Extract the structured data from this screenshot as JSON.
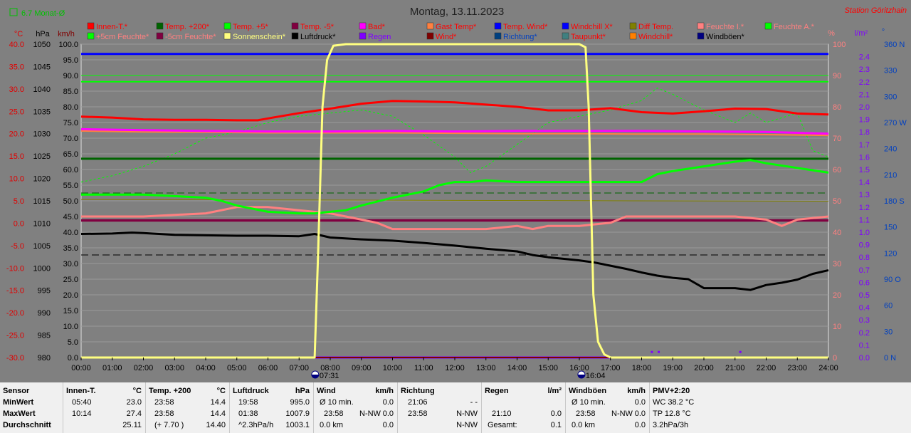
{
  "header": {
    "title": "Montag, 13.11.2023",
    "station": "Station Göritzhain",
    "checkbox_label": "6.7 Monat-Ø"
  },
  "axis_units": {
    "temp": "°C",
    "press": "hPa",
    "speed": "km/h",
    "hum": "%",
    "rain": "l/m²",
    "dir": "°"
  },
  "legend": [
    {
      "label": "Innen-T.*",
      "color": "#ff0000",
      "text": "#ff0000"
    },
    {
      "label": "Temp. +200*",
      "color": "#006400",
      "text": "#ff0000"
    },
    {
      "label": "Temp. +5*",
      "color": "#00ff00",
      "text": "#ff0000"
    },
    {
      "label": "Temp. -5*",
      "color": "#800040",
      "text": "#ff0000"
    },
    {
      "label": "Bad*",
      "color": "#ff00ff",
      "text": "#ff0000"
    },
    {
      "label": "Gast Temp*",
      "color": "#ff8040",
      "text": "#ff0000"
    },
    {
      "label": "Temp. Wind*",
      "color": "#0000ff",
      "text": "#ff0000"
    },
    {
      "label": "Windchill X*",
      "color": "#0000ff",
      "text": "#ff0000"
    },
    {
      "label": "Diff Temp.",
      "color": "#808000",
      "text": "#ff0000"
    },
    {
      "label": "Feuchte I.*",
      "color": "#ff8080",
      "text": "#ff8080"
    },
    {
      "label": "Feuchte A.*",
      "color": "#00ff00",
      "text": "#ff8080"
    },
    {
      "label": "+5cm Feuchte*",
      "color": "#00ff00",
      "text": "#ff8080"
    },
    {
      "label": "-5cm Feuchte*",
      "color": "#800040",
      "text": "#ff8080"
    },
    {
      "label": "Sonnenschein*",
      "color": "#ffff80",
      "text": "#ffff80"
    },
    {
      "label": "Luftdruck*",
      "color": "#000000",
      "text": "#000000"
    },
    {
      "label": "Regen",
      "color": "#8000ff",
      "text": "#8000ff"
    },
    {
      "label": "Wind*",
      "color": "#800000",
      "text": "#ff0000"
    },
    {
      "label": "Richtung*",
      "color": "#004080",
      "text": "#0040c0"
    },
    {
      "label": "Taupunkt*",
      "color": "#408080",
      "text": "#ff0000"
    },
    {
      "label": "Windchill*",
      "color": "#ff8000",
      "text": "#ff0000"
    },
    {
      "label": "Windböen*",
      "color": "#000080",
      "text": "#000000"
    }
  ],
  "stats": {
    "row_labels": [
      "Sensor",
      "MinWert",
      "MaxWert",
      "Durchschnitt"
    ],
    "innen": {
      "title": "Innen-T.",
      "unit": "°C",
      "min_time": "05:40",
      "min": "23.0",
      "max_time": "10:14",
      "max": "27.4",
      "avg": "25.11"
    },
    "temp200": {
      "title": "Temp. +200",
      "unit": "°C",
      "min_time": "23:58",
      "min": "14.4",
      "max_time": "23:58",
      "max": "14.4",
      "avg_note": "(+ 7.70 )",
      "avg": "14.40"
    },
    "druck": {
      "title": "Luftdruck",
      "unit": "hPa",
      "min_time": "19:58",
      "min": "995.0",
      "max_time": "01:38",
      "max": "1007.9",
      "avg_note": "^2.3hPa/h",
      "avg": "1003.1"
    },
    "wind": {
      "title": "Wind",
      "unit": "km/h",
      "min_note": "Ø 10 min.",
      "min": "0.0",
      "max_time": "23:58",
      "max_dir": "N-NW",
      "max": "0.0",
      "avg_note": "0.0 km",
      "avg": "0.0"
    },
    "richtung": {
      "title": "Richtung",
      "min_time": "21:06",
      "min": "- -",
      "max_time": "23:58",
      "max": "N-NW",
      "avg": "N-NW"
    },
    "regen": {
      "title": "Regen",
      "unit": "l/m²",
      "max_time": "21:10",
      "max": "0.0",
      "avg_note": "Gesamt:",
      "avg": "0.1"
    },
    "boeen": {
      "title": "Windböen",
      "unit": "km/h",
      "min_note": "Ø 10 min.",
      "min": "0.0",
      "max_time": "23:58",
      "max_dir": "N-NW",
      "max": "0.0",
      "avg_note": "0.0 km",
      "avg": "0.0"
    },
    "pmv": {
      "title": "PMV+2:20",
      "min": "WC 38.2 °C",
      "max": "TP 12.8 °C",
      "avg": "3.2hPa/3h"
    }
  },
  "chart_data": {
    "type": "line",
    "title": "Montag, 13.11.2023",
    "x_ticks": [
      "00:00",
      "01:00",
      "02:00",
      "03:00",
      "04:00",
      "05:00",
      "06:00",
      "07:00",
      "08:00",
      "09:00",
      "10:00",
      "11:00",
      "12:00",
      "13:00",
      "14:00",
      "15:00",
      "16:00",
      "17:00",
      "18:00",
      "19:00",
      "20:00",
      "21:00",
      "22:00",
      "23:00",
      "24:00"
    ],
    "sunrise": "07:31",
    "sunset": "16:04",
    "axes": {
      "temp_ticks": [
        "40.0",
        "35.0",
        "30.0",
        "25.0",
        "20.0",
        "15.0",
        "10.0",
        "5.0",
        "0.0",
        "-5.0",
        "-10.0",
        "-15.0",
        "-20.0",
        "-25.0",
        "-30.0"
      ],
      "press_ticks": [
        "1050",
        "1045",
        "1040",
        "1035",
        "1030",
        "1025",
        "1020",
        "1015",
        "1010",
        "1005",
        "1000",
        "995",
        "990",
        "985",
        "980"
      ],
      "speed_ticks": [
        "100.0",
        "95.0",
        "90.0",
        "85.0",
        "80.0",
        "75.0",
        "70.0",
        "65.0",
        "60.0",
        "55.0",
        "50.0",
        "45.0",
        "40.0",
        "35.0",
        "30.0",
        "25.0",
        "20.0",
        "15.0",
        "10.0",
        "5.0",
        "0.0"
      ],
      "hum_ticks": [
        "100",
        "90",
        "80",
        "70",
        "60",
        "50",
        "40",
        "30",
        "20",
        "10",
        "0"
      ],
      "rain_ticks": [
        "2.4",
        "2.3",
        "2.2",
        "2.1",
        "2.0",
        "1.9",
        "1.8",
        "1.7",
        "1.6",
        "1.5",
        "1.4",
        "1.3",
        "1.2",
        "1.1",
        "1.0",
        "0.9",
        "0.8",
        "0.7",
        "0.6",
        "0.5",
        "0.4",
        "0.3",
        "0.2",
        "0.1",
        "0.0"
      ],
      "dir_ticks": [
        "360 N",
        "330",
        "300",
        "270 W",
        "240",
        "210",
        "180 S",
        "150",
        "120",
        "90 O",
        "60",
        "30",
        "0 N"
      ]
    },
    "series": [
      {
        "key": "innen",
        "name": "Innen-T.*",
        "axis": "temp",
        "color": "#ff0000",
        "width": 3,
        "x": [
          0,
          1,
          2,
          3,
          4,
          5,
          5.67,
          6,
          7,
          8,
          9,
          10,
          11,
          12,
          13,
          14,
          15,
          16,
          17,
          18,
          19,
          20,
          21,
          22,
          23,
          24
        ],
        "y": [
          23.8,
          23.6,
          23.2,
          23.1,
          23.1,
          23.0,
          23.0,
          23.4,
          24.6,
          25.6,
          26.7,
          27.3,
          27.2,
          27.0,
          26.5,
          26.0,
          25.2,
          25.2,
          25.7,
          24.8,
          24.5,
          25.0,
          25.6,
          25.5,
          24.5,
          24.3
        ]
      },
      {
        "key": "temp200",
        "name": "Temp. +200*",
        "axis": "temp",
        "color": "#006400",
        "width": 3,
        "x": [
          0,
          24
        ],
        "y": [
          14.4,
          14.4
        ]
      },
      {
        "key": "temp5",
        "name": "Temp. +5*",
        "axis": "temp",
        "color": "#00ff00",
        "width": 2,
        "x": [
          0,
          24
        ],
        "y": [
          31.6,
          31.6
        ]
      },
      {
        "key": "temp_m5",
        "name": "Temp. -5*",
        "axis": "temp",
        "color": "#800040",
        "width": 2,
        "x": [
          0,
          24
        ],
        "y": [
          0.5,
          0.5
        ]
      },
      {
        "key": "bad",
        "name": "Bad*",
        "axis": "temp",
        "color": "#ff00ff",
        "width": 3,
        "x": [
          0,
          2,
          4,
          6,
          8,
          10,
          12,
          14,
          16,
          18,
          20,
          22,
          24
        ],
        "y": [
          21.0,
          20.8,
          20.6,
          20.5,
          20.5,
          20.6,
          20.5,
          20.6,
          20.6,
          20.6,
          20.5,
          20.4,
          20.0
        ]
      },
      {
        "key": "gast",
        "name": "Gast Temp*",
        "axis": "temp",
        "color": "#ff8040",
        "width": 2,
        "x": [
          0,
          2,
          4,
          6,
          8,
          10,
          12,
          14,
          16,
          18,
          20,
          22,
          24
        ],
        "y": [
          20.6,
          20.4,
          20.3,
          20.2,
          20.2,
          20.2,
          20.1,
          20.0,
          20.0,
          19.9,
          19.9,
          19.8,
          19.6
        ]
      },
      {
        "key": "windtemp",
        "name": "Temp. Wind*",
        "axis": "temp",
        "color": "#0000ff",
        "width": 3,
        "x": [
          0,
          24
        ],
        "y": [
          37.8,
          37.8
        ]
      },
      {
        "key": "difftemp",
        "name": "Diff Temp.",
        "axis": "temp",
        "color": "#808000",
        "width": 1,
        "x": [
          0,
          24
        ],
        "y": [
          5.3,
          4.9
        ]
      },
      {
        "key": "feuchte_i",
        "name": "Feuchte I.*",
        "axis": "hum",
        "color": "#ff8080",
        "width": 3,
        "x": [
          0,
          2,
          4,
          5,
          6,
          7,
          8,
          8.5,
          9,
          9.5,
          10,
          11,
          12,
          13,
          14,
          14.5,
          15,
          16,
          17,
          17.5,
          18,
          19,
          20,
          21,
          22,
          22.5,
          23,
          24
        ],
        "y": [
          45,
          45,
          46,
          48,
          48,
          47,
          46,
          45,
          44,
          43,
          41,
          41,
          41,
          41,
          42,
          41,
          42,
          42,
          43,
          45,
          45,
          45,
          45,
          45,
          44,
          42,
          44,
          45
        ]
      },
      {
        "key": "feuchte_a",
        "name": "Feuchte A.*",
        "axis": "hum",
        "color": "#00ff00",
        "width": 1,
        "x": [
          0,
          24
        ],
        "y": [
          90,
          90
        ]
      },
      {
        "key": "feuchte_5cm",
        "name": "+5cm Feuchte*",
        "axis": "hum",
        "color": "#00ff00",
        "width": 3,
        "x": [
          0,
          1,
          2,
          3,
          4,
          4.5,
          5,
          6,
          7,
          7.5,
          8,
          8.5,
          9,
          10,
          11,
          11.5,
          12,
          12.5,
          13,
          14,
          15,
          16,
          17,
          18,
          18.5,
          19,
          20,
          21,
          21.5,
          22,
          23,
          24
        ],
        "y": [
          52,
          52,
          52,
          51.5,
          51,
          50,
          48.5,
          46.5,
          46,
          46,
          46.5,
          47,
          48.5,
          51,
          53,
          55,
          56,
          56,
          56.5,
          56,
          56,
          56,
          56,
          56,
          58.5,
          59.5,
          61,
          62.5,
          63,
          62,
          60.5,
          59
        ]
      },
      {
        "key": "feuchte_m5cm",
        "name": "-5cm Feuchte*",
        "axis": "hum",
        "color": "#800040",
        "width": 2,
        "x": [
          0,
          24
        ],
        "y": [
          43.9,
          43.9
        ]
      },
      {
        "key": "sonne",
        "name": "Sonnenschein*",
        "axis": "hum",
        "color": "#ffff80",
        "width": 3,
        "x": [
          0,
          7.5,
          7.6,
          7.75,
          7.9,
          8.1,
          8.5,
          9,
          16,
          16.2,
          16.3,
          16.45,
          16.6,
          16.8,
          17,
          24
        ],
        "y": [
          0,
          0,
          30,
          80,
          95,
          99.5,
          100,
          100,
          100,
          99,
          80,
          20,
          5,
          1,
          0,
          0
        ]
      },
      {
        "key": "luftdruck",
        "name": "Luftdruck*",
        "axis": "press",
        "color": "#000000",
        "width": 3,
        "x": [
          0,
          1,
          1.63,
          2,
          3,
          4,
          5,
          6,
          7,
          7.5,
          8,
          9,
          10,
          11,
          12,
          13,
          14,
          14.5,
          15,
          16,
          16.5,
          17,
          17.5,
          18,
          18.5,
          19,
          19.5,
          20,
          21,
          21.5,
          22,
          22.5,
          23,
          23.5,
          24
        ],
        "y": [
          1007.6,
          1007.7,
          1007.9,
          1007.8,
          1007.4,
          1007.3,
          1007.2,
          1007.2,
          1007.1,
          1007.6,
          1006.8,
          1006.4,
          1006.1,
          1005.6,
          1005.0,
          1004.3,
          1003.7,
          1002.9,
          1002.4,
          1001.7,
          1001.2,
          1000.5,
          999.8,
          999.0,
          998.3,
          997.8,
          997.5,
          995.5,
          995.5,
          995.1,
          996.2,
          996.7,
          997.4,
          998.7,
          999.5
        ]
      },
      {
        "key": "regen",
        "name": "Regen",
        "axis": "rain",
        "color": "#8000ff",
        "width": 3,
        "x": [
          0,
          24
        ],
        "y": [
          0,
          0
        ]
      },
      {
        "key": "windboeen",
        "name": "Windböen*",
        "axis": "speed",
        "color": "#000080",
        "width": 2,
        "x": [
          0,
          24
        ],
        "y": [
          0,
          0
        ]
      },
      {
        "key": "wind",
        "name": "Wind*",
        "axis": "speed",
        "color": "#800000",
        "width": 2,
        "x": [
          0,
          24
        ],
        "y": [
          0,
          0
        ]
      },
      {
        "key": "windchill",
        "name": "Windchill*",
        "axis": "temp",
        "color": "#ff8000",
        "width": 1,
        "x": [
          0,
          24
        ],
        "y": [
          -30,
          -30
        ]
      },
      {
        "key": "taupunkt",
        "name": "Taupunkt*",
        "axis": "hum",
        "color": "#00ff00",
        "width": 1,
        "dash": "3,3",
        "x": [
          0,
          1,
          2,
          3,
          4,
          5,
          6,
          7,
          8,
          9,
          10,
          11,
          12,
          12.5,
          13,
          14,
          15,
          16,
          17,
          18,
          18.5,
          19,
          20,
          21,
          21.5,
          22,
          23,
          23.5,
          24
        ],
        "y": [
          56,
          58,
          61,
          65,
          70,
          72,
          75,
          77,
          78,
          79,
          77,
          71,
          64,
          59,
          61,
          68,
          75,
          77,
          79,
          82,
          86,
          84,
          79,
          75,
          78,
          75,
          78,
          66,
          64
        ]
      }
    ],
    "dashed_refs": [
      {
        "axis": "hum",
        "y": 52.5,
        "color": "#006400"
      },
      {
        "axis": "press",
        "y": 1002.9,
        "color": "#000000"
      }
    ],
    "rain_markers": [
      {
        "x": 18.33,
        "y": 0.03
      },
      {
        "x": 18.55,
        "y": 0.03
      },
      {
        "x": 21.17,
        "y": 0.03
      }
    ],
    "checkbox": {
      "checked": false
    }
  }
}
